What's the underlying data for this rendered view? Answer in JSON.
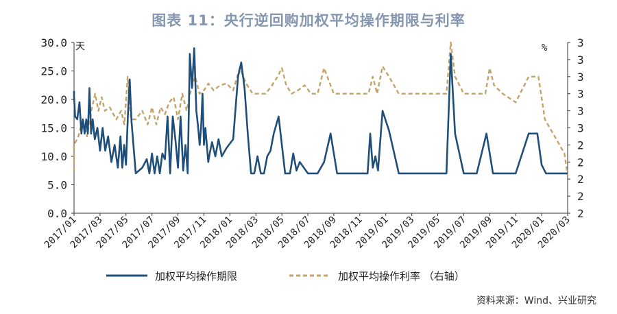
{
  "title": "图表 11：央行逆回购加权平均操作期限与利率",
  "source": "资料来源：Wind、兴业研究",
  "colors": {
    "duration": "#1f4e79",
    "rate": "#c4a36a",
    "title": "#8496b0"
  },
  "chart_data": {
    "type": "line",
    "title": "图表 11：央行逆回购加权平均操作期限与利率",
    "x_tick_labels": [
      "2017/01",
      "2017/03",
      "2017/05",
      "2017/07",
      "2017/09",
      "2017/11",
      "2018/01",
      "2018/03",
      "2018/05",
      "2018/07",
      "2018/09",
      "2018/11",
      "2019/01",
      "2019/03",
      "2019/05",
      "2019/07",
      "2019/09",
      "2019/11",
      "2020/01",
      "2020/03"
    ],
    "x_range": [
      "2017/01",
      "2020/03"
    ],
    "left_axis": {
      "unit_label": "天",
      "ylim": [
        0,
        30
      ],
      "tick_labels": [
        "0.0",
        "5.0",
        "10.0",
        "15.0",
        "20.0",
        "25.0",
        "30.0"
      ]
    },
    "right_axis": {
      "unit_label": "%",
      "ylim": [
        2.0,
        3.0
      ],
      "tick_labels": [
        "2",
        "2",
        "2",
        "2",
        "2",
        "3",
        "3",
        "3",
        "3",
        "3",
        "3"
      ]
    },
    "grid": false,
    "legend_position": "bottom",
    "series": [
      {
        "name": "加权平均操作期限",
        "axis": "left",
        "style": "solid",
        "points": [
          [
            "2017/01",
            21.5
          ],
          [
            "2017/01",
            21.0
          ],
          [
            "2017/01",
            20.5
          ],
          [
            "2017/01",
            17.0
          ],
          [
            "2017/01",
            16.5
          ],
          [
            "2017/01",
            19.5
          ],
          [
            "2017/02",
            14.0
          ],
          [
            "2017/02",
            16.5
          ],
          [
            "2017/02",
            14.0
          ],
          [
            "2017/02",
            16.5
          ],
          [
            "2017/02",
            14.0
          ],
          [
            "2017/02",
            22.0
          ],
          [
            "2017/02",
            14.0
          ],
          [
            "2017/02",
            16.5
          ],
          [
            "2017/03",
            13.0
          ],
          [
            "2017/03",
            15.0
          ],
          [
            "2017/03",
            11.0
          ],
          [
            "2017/03",
            15.0
          ],
          [
            "2017/03",
            11.0
          ],
          [
            "2017/04",
            13.5
          ],
          [
            "2017/04",
            9.0
          ],
          [
            "2017/04",
            12.0
          ],
          [
            "2017/04",
            8.0
          ],
          [
            "2017/05",
            13.5
          ],
          [
            "2017/05",
            8.0
          ],
          [
            "2017/05",
            12.0
          ],
          [
            "2017/05",
            8.5
          ],
          [
            "2017/05",
            17.0
          ],
          [
            "2017/05",
            23.5
          ],
          [
            "2017/05",
            16.0
          ],
          [
            "2017/06",
            7.0
          ],
          [
            "2017/06",
            8.0
          ],
          [
            "2017/07",
            9.5
          ],
          [
            "2017/07",
            7.0
          ],
          [
            "2017/07",
            10.5
          ],
          [
            "2017/07",
            7.0
          ],
          [
            "2017/07",
            10.0
          ],
          [
            "2017/08",
            7.0
          ],
          [
            "2017/08",
            10.5
          ],
          [
            "2017/08",
            9.5
          ],
          [
            "2017/08",
            17.0
          ],
          [
            "2017/08",
            7.0
          ],
          [
            "2017/09",
            17.0
          ],
          [
            "2017/09",
            13.0
          ],
          [
            "2017/09",
            8.0
          ],
          [
            "2017/09",
            17.0
          ],
          [
            "2017/09",
            7.5
          ],
          [
            "2017/10",
            12.0
          ],
          [
            "2017/10",
            7.0
          ],
          [
            "2017/10",
            28.0
          ],
          [
            "2017/10",
            22.0
          ],
          [
            "2017/10",
            29.0
          ],
          [
            "2017/10",
            18.0
          ],
          [
            "2017/11",
            15.0
          ],
          [
            "2017/11",
            12.0
          ],
          [
            "2017/11",
            15.0
          ],
          [
            "2017/11",
            21.0
          ],
          [
            "2017/11",
            12.0
          ],
          [
            "2017/11",
            15.0
          ],
          [
            "2017/11",
            12.0
          ],
          [
            "2017/11",
            9.0
          ],
          [
            "2017/11",
            10.5
          ],
          [
            "2017/12",
            12.5
          ],
          [
            "2017/12",
            10.0
          ],
          [
            "2017/12",
            13.0
          ],
          [
            "2017/12",
            10.0
          ],
          [
            "2018/01",
            11.5
          ],
          [
            "2018/01",
            13.0
          ],
          [
            "2018/02",
            24.0
          ],
          [
            "2018/02",
            26.5
          ],
          [
            "2018/02",
            22.0
          ],
          [
            "2018/02",
            14.0
          ],
          [
            "2018/03",
            7.0
          ],
          [
            "2018/03",
            7.0
          ],
          [
            "2018/03",
            10.0
          ],
          [
            "2018/03",
            7.0
          ],
          [
            "2018/04",
            7.0
          ],
          [
            "2018/04",
            10.0
          ],
          [
            "2018/04",
            11.0
          ],
          [
            "2018/04",
            14.0
          ],
          [
            "2018/05",
            17.0
          ],
          [
            "2018/05",
            7.0
          ],
          [
            "2018/06",
            7.0
          ],
          [
            "2018/06",
            10.5
          ],
          [
            "2018/06",
            7.5
          ],
          [
            "2018/06",
            9.0
          ],
          [
            "2018/07",
            7.0
          ],
          [
            "2018/08",
            7.0
          ],
          [
            "2018/08",
            9.0
          ],
          [
            "2018/09",
            14.0
          ],
          [
            "2018/09",
            7.0
          ],
          [
            "2018/10",
            7.0
          ],
          [
            "2018/11",
            7.0
          ],
          [
            "2018/12",
            7.0
          ],
          [
            "2018/12",
            14.0
          ],
          [
            "2018/12",
            8.0
          ],
          [
            "2018/12",
            10.0
          ],
          [
            "2018/12",
            7.5
          ],
          [
            "2019/01",
            18.0
          ],
          [
            "2019/01",
            14.5
          ],
          [
            "2019/02",
            7.0
          ],
          [
            "2019/03",
            7.0
          ],
          [
            "2019/04",
            7.0
          ],
          [
            "2019/05",
            7.0
          ],
          [
            "2019/06",
            7.0
          ],
          [
            "2019/06",
            28.0
          ],
          [
            "2019/06",
            14.0
          ],
          [
            "2019/07",
            7.0
          ],
          [
            "2019/08",
            7.0
          ],
          [
            "2019/09",
            14.0
          ],
          [
            "2019/09",
            7.0
          ],
          [
            "2019/10",
            7.0
          ],
          [
            "2019/11",
            7.0
          ],
          [
            "2019/12",
            14.0
          ],
          [
            "2020/01",
            14.0
          ],
          [
            "2020/01",
            8.5
          ],
          [
            "2020/01",
            7.0
          ],
          [
            "2020/02",
            7.0
          ],
          [
            "2020/03",
            7.0
          ]
        ]
      },
      {
        "name": "加权平均操作利率",
        "axis": "right",
        "legend_label": "加权平均操作利率 （右轴）",
        "style": "dashed",
        "points": [
          [
            "2017/01",
            2.25
          ],
          [
            "2017/01",
            2.4
          ],
          [
            "2017/01",
            2.45
          ],
          [
            "2017/02",
            2.55
          ],
          [
            "2017/02",
            2.45
          ],
          [
            "2017/02",
            2.6
          ],
          [
            "2017/03",
            2.7
          ],
          [
            "2017/03",
            2.6
          ],
          [
            "2017/03",
            2.68
          ],
          [
            "2017/03",
            2.6
          ],
          [
            "2017/04",
            2.62
          ],
          [
            "2017/04",
            2.55
          ],
          [
            "2017/05",
            2.6
          ],
          [
            "2017/05",
            2.52
          ],
          [
            "2017/05",
            2.8
          ],
          [
            "2017/05",
            2.55
          ],
          [
            "2017/06",
            2.55
          ],
          [
            "2017/06",
            2.6
          ],
          [
            "2017/07",
            2.52
          ],
          [
            "2017/07",
            2.62
          ],
          [
            "2017/07",
            2.52
          ],
          [
            "2017/08",
            2.62
          ],
          [
            "2017/08",
            2.58
          ],
          [
            "2017/08",
            2.65
          ],
          [
            "2017/09",
            2.68
          ],
          [
            "2017/09",
            2.55
          ],
          [
            "2017/09",
            2.7
          ],
          [
            "2017/10",
            2.6
          ],
          [
            "2017/10",
            2.72
          ],
          [
            "2017/10",
            2.8
          ],
          [
            "2017/11",
            2.7
          ],
          [
            "2017/11",
            2.72
          ],
          [
            "2017/11",
            2.76
          ],
          [
            "2017/12",
            2.72
          ],
          [
            "2017/12",
            2.75
          ],
          [
            "2018/01",
            2.76
          ],
          [
            "2018/01",
            2.72
          ],
          [
            "2018/02",
            2.85
          ],
          [
            "2018/02",
            2.76
          ],
          [
            "2018/03",
            2.7
          ],
          [
            "2018/03",
            2.7
          ],
          [
            "2018/04",
            2.7
          ],
          [
            "2018/04",
            2.75
          ],
          [
            "2018/05",
            2.8
          ],
          [
            "2018/05",
            2.85
          ],
          [
            "2018/05",
            2.75
          ],
          [
            "2018/06",
            2.7
          ],
          [
            "2018/06",
            2.72
          ],
          [
            "2018/07",
            2.75
          ],
          [
            "2018/07",
            2.7
          ],
          [
            "2018/08",
            2.7
          ],
          [
            "2018/08",
            2.85
          ],
          [
            "2018/09",
            2.7
          ],
          [
            "2018/10",
            2.7
          ],
          [
            "2018/11",
            2.7
          ],
          [
            "2018/12",
            2.7
          ],
          [
            "2018/12",
            2.8
          ],
          [
            "2018/12",
            2.7
          ],
          [
            "2019/01",
            2.86
          ],
          [
            "2019/01",
            2.8
          ],
          [
            "2019/02",
            2.7
          ],
          [
            "2019/03",
            2.7
          ],
          [
            "2019/04",
            2.7
          ],
          [
            "2019/05",
            2.7
          ],
          [
            "2019/06",
            2.7
          ],
          [
            "2019/06",
            3.0
          ],
          [
            "2019/06",
            2.8
          ],
          [
            "2019/07",
            2.7
          ],
          [
            "2019/08",
            2.7
          ],
          [
            "2019/09",
            2.7
          ],
          [
            "2019/09",
            2.85
          ],
          [
            "2019/09",
            2.75
          ],
          [
            "2019/10",
            2.7
          ],
          [
            "2019/11",
            2.65
          ],
          [
            "2019/12",
            2.8
          ],
          [
            "2020/01",
            2.8
          ],
          [
            "2020/01",
            2.55
          ],
          [
            "2020/02",
            2.45
          ],
          [
            "2020/03",
            2.35
          ],
          [
            "2020/03",
            2.22
          ]
        ]
      }
    ]
  }
}
